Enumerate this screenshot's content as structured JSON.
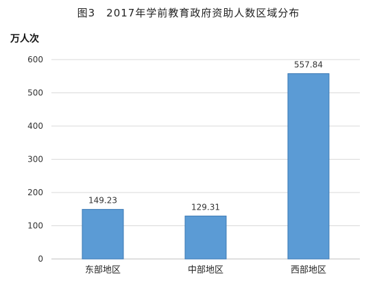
{
  "chart_data": {
    "type": "bar",
    "title": "图3　2017年学前教育政府资助人数区域分布",
    "ylabel": "万人次",
    "xlabel": "",
    "categories": [
      "东部地区",
      "中部地区",
      "西部地区"
    ],
    "values": [
      149.23,
      129.31,
      557.84
    ],
    "value_labels": [
      "149.23",
      "129.31",
      "557.84"
    ],
    "ylim": [
      0,
      600
    ],
    "yticks": [
      0,
      100,
      200,
      300,
      400,
      500,
      600
    ],
    "grid": true,
    "legend": "none",
    "bar_color": "#5b9bd5",
    "bar_edge_color": "#3b78b4",
    "grid_color": "#d9d9d9"
  }
}
